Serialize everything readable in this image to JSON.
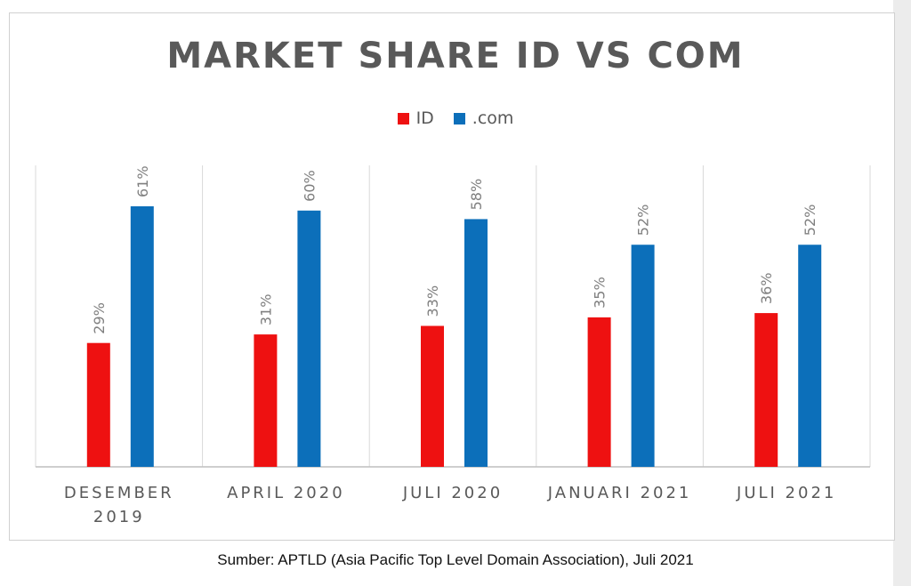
{
  "page": {
    "caption": "Sumber: APTLD (Asia Pacific Top Level Domain Association), Juli 2021"
  },
  "chart_data": {
    "type": "bar",
    "title": "MARKET SHARE ID VS COM",
    "categories": [
      [
        "DESEMBER",
        "2019"
      ],
      [
        "APRIL 2020"
      ],
      [
        "JULI 2020"
      ],
      [
        "JANUARI 2021"
      ],
      [
        "JULI 2021"
      ]
    ],
    "series": [
      {
        "name": "ID",
        "color": "#ee1111",
        "values": [
          29,
          31,
          33,
          35,
          36
        ],
        "labels": [
          "29%",
          "31%",
          "33%",
          "35%",
          "36%"
        ]
      },
      {
        "name": ".com",
        "color": "#0c6fba",
        "values": [
          61,
          60,
          58,
          52,
          52
        ],
        "labels": [
          "61%",
          "60%",
          "58%",
          "52%",
          "52%"
        ]
      }
    ],
    "ylim": [
      0,
      61
    ],
    "legend_position": "top-center",
    "gridlines": "vertical category separators",
    "value_unit": "%"
  }
}
